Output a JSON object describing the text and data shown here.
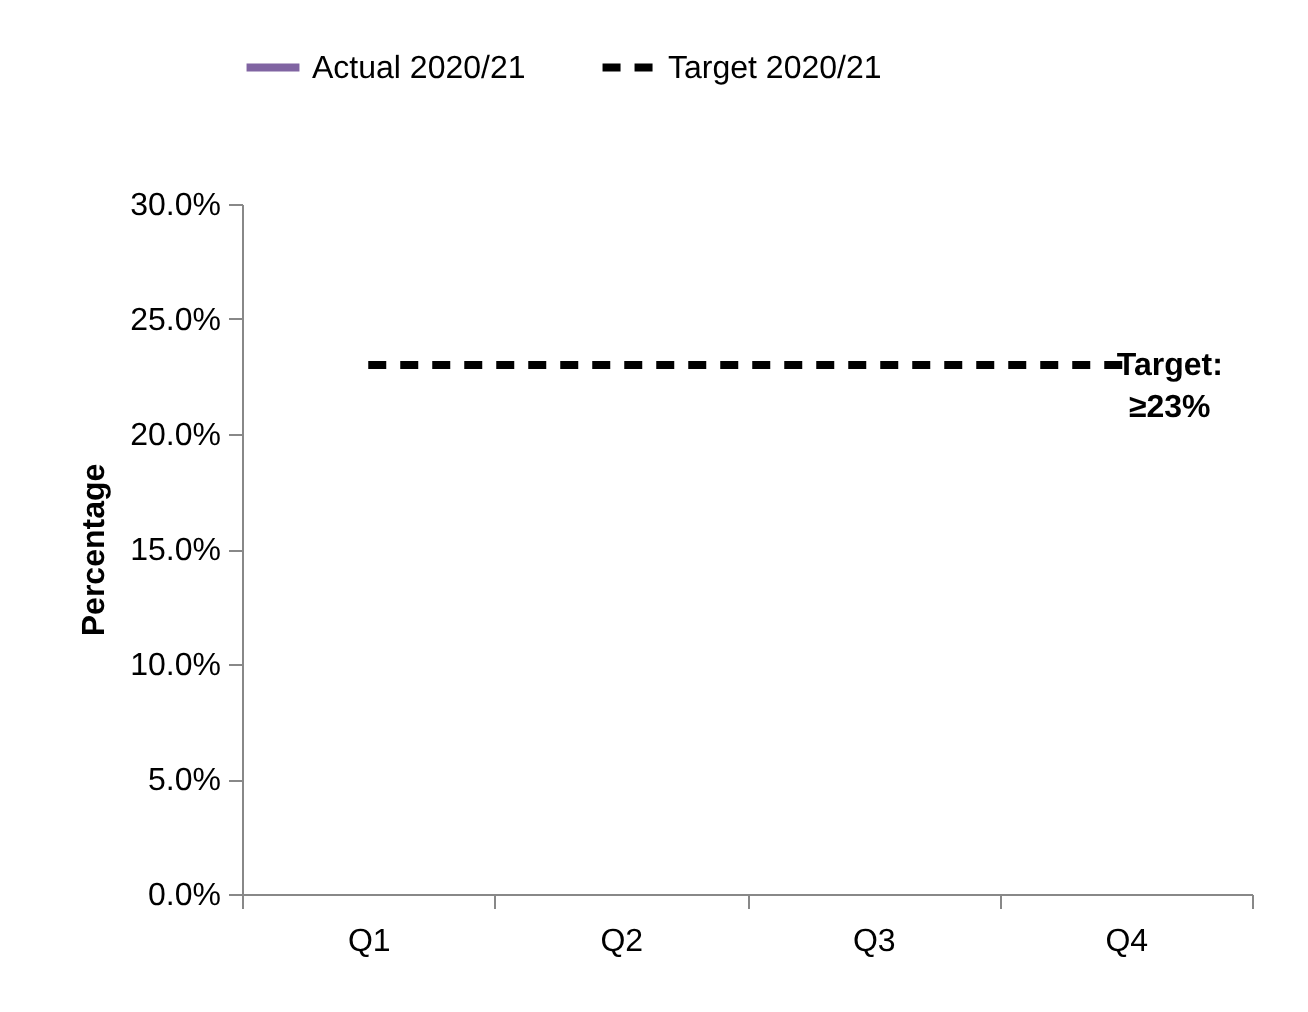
{
  "chart_data": {
    "type": "line",
    "categories": [
      "Q1",
      "Q2",
      "Q3",
      "Q4"
    ],
    "ylabel": "Percentage",
    "series": [
      {
        "name": "Actual 2020/21",
        "color": "#8064a2",
        "values": [
          null,
          null,
          null,
          null
        ],
        "marker": "cross",
        "line_style": "solid"
      },
      {
        "name": "Target 2020/21",
        "color": "#000000",
        "values": [
          23,
          23,
          23,
          23
        ],
        "marker": "none",
        "line_style": "dashed"
      }
    ],
    "ylim": [
      0,
      30
    ],
    "yticks": [
      {
        "value": 0,
        "label": "0.0%"
      },
      {
        "value": 5,
        "label": "5.0%"
      },
      {
        "value": 10,
        "label": "10.0%"
      },
      {
        "value": 15,
        "label": "15.0%"
      },
      {
        "value": 20,
        "label": "20.0%"
      },
      {
        "value": 25,
        "label": "25.0%"
      },
      {
        "value": 30,
        "label": "30.0%"
      }
    ],
    "annotations": [
      {
        "text": "Target:\n≥23%",
        "x": "Q4",
        "y": 23
      }
    ],
    "grid": false,
    "legend": "top"
  }
}
